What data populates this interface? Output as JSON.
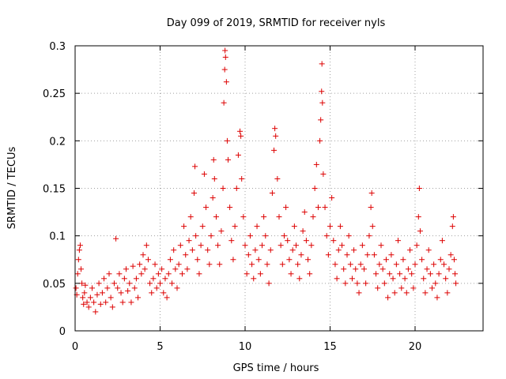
{
  "chart_data": {
    "type": "scatter",
    "title": "Day 099 of 2019, SRMTID for receiver nyls",
    "xlabel": "GPS time / hours",
    "ylabel": "SRMTID / TECUs",
    "xlim": [
      0,
      24
    ],
    "ylim": [
      0,
      0.3
    ],
    "xticks": [
      "0",
      "5",
      "10",
      "15",
      "20"
    ],
    "xtick_values": [
      0,
      5,
      10,
      15,
      20
    ],
    "yticks": [
      "0",
      "0.05",
      "0.1",
      "0.15",
      "0.2",
      "0.25",
      "0.3"
    ],
    "ytick_values": [
      0,
      0.05,
      0.1,
      0.15,
      0.2,
      0.25,
      0.3
    ],
    "grid": true,
    "marker": "plus",
    "color": "#dd0000",
    "series": [
      {
        "points": [
          [
            0.05,
            0.045
          ],
          [
            0.1,
            0.038
          ],
          [
            0.15,
            0.06
          ],
          [
            0.2,
            0.075
          ],
          [
            0.25,
            0.085
          ],
          [
            0.3,
            0.09
          ],
          [
            0.35,
            0.065
          ],
          [
            0.4,
            0.05
          ],
          [
            0.45,
            0.035
          ],
          [
            0.5,
            0.028
          ],
          [
            0.55,
            0.04
          ],
          [
            0.6,
            0.048
          ],
          [
            0.7,
            0.03
          ],
          [
            0.8,
            0.025
          ],
          [
            0.9,
            0.035
          ],
          [
            1.0,
            0.045
          ],
          [
            1.1,
            0.03
          ],
          [
            1.2,
            0.02
          ],
          [
            1.3,
            0.038
          ],
          [
            1.4,
            0.05
          ],
          [
            1.5,
            0.028
          ],
          [
            1.6,
            0.04
          ],
          [
            1.7,
            0.055
          ],
          [
            1.8,
            0.03
          ],
          [
            1.9,
            0.045
          ],
          [
            2.0,
            0.06
          ],
          [
            2.1,
            0.035
          ],
          [
            2.2,
            0.025
          ],
          [
            2.3,
            0.05
          ],
          [
            2.4,
            0.097
          ],
          [
            2.5,
            0.045
          ],
          [
            2.6,
            0.06
          ],
          [
            2.7,
            0.04
          ],
          [
            2.8,
            0.03
          ],
          [
            2.9,
            0.055
          ],
          [
            3.0,
            0.065
          ],
          [
            3.1,
            0.042
          ],
          [
            3.2,
            0.05
          ],
          [
            3.3,
            0.03
          ],
          [
            3.4,
            0.068
          ],
          [
            3.5,
            0.045
          ],
          [
            3.6,
            0.055
          ],
          [
            3.7,
            0.035
          ],
          [
            3.8,
            0.07
          ],
          [
            3.9,
            0.06
          ],
          [
            4.0,
            0.08
          ],
          [
            4.1,
            0.065
          ],
          [
            4.2,
            0.09
          ],
          [
            4.3,
            0.075
          ],
          [
            4.4,
            0.05
          ],
          [
            4.5,
            0.04
          ],
          [
            4.6,
            0.055
          ],
          [
            4.7,
            0.07
          ],
          [
            4.8,
            0.045
          ],
          [
            4.9,
            0.06
          ],
          [
            5.0,
            0.05
          ],
          [
            5.1,
            0.065
          ],
          [
            5.2,
            0.04
          ],
          [
            5.3,
            0.055
          ],
          [
            5.4,
            0.035
          ],
          [
            5.5,
            0.06
          ],
          [
            5.6,
            0.075
          ],
          [
            5.7,
            0.05
          ],
          [
            5.8,
            0.085
          ],
          [
            5.9,
            0.065
          ],
          [
            6.0,
            0.045
          ],
          [
            6.1,
            0.07
          ],
          [
            6.2,
            0.09
          ],
          [
            6.3,
            0.06
          ],
          [
            6.4,
            0.11
          ],
          [
            6.5,
            0.08
          ],
          [
            6.6,
            0.065
          ],
          [
            6.7,
            0.095
          ],
          [
            6.8,
            0.12
          ],
          [
            6.9,
            0.085
          ],
          [
            7.0,
            0.145
          ],
          [
            7.05,
            0.173
          ],
          [
            7.1,
            0.1
          ],
          [
            7.2,
            0.075
          ],
          [
            7.3,
            0.06
          ],
          [
            7.4,
            0.09
          ],
          [
            7.5,
            0.11
          ],
          [
            7.6,
            0.165
          ],
          [
            7.7,
            0.13
          ],
          [
            7.8,
            0.085
          ],
          [
            7.9,
            0.07
          ],
          [
            8.0,
            0.1
          ],
          [
            8.1,
            0.14
          ],
          [
            8.15,
            0.18
          ],
          [
            8.2,
            0.16
          ],
          [
            8.3,
            0.12
          ],
          [
            8.4,
            0.09
          ],
          [
            8.5,
            0.07
          ],
          [
            8.6,
            0.105
          ],
          [
            8.7,
            0.15
          ],
          [
            8.75,
            0.24
          ],
          [
            8.8,
            0.275
          ],
          [
            8.82,
            0.295
          ],
          [
            8.85,
            0.288
          ],
          [
            8.9,
            0.262
          ],
          [
            8.95,
            0.2
          ],
          [
            9.0,
            0.18
          ],
          [
            9.1,
            0.13
          ],
          [
            9.2,
            0.095
          ],
          [
            9.3,
            0.075
          ],
          [
            9.4,
            0.11
          ],
          [
            9.5,
            0.15
          ],
          [
            9.6,
            0.185
          ],
          [
            9.7,
            0.21
          ],
          [
            9.75,
            0.205
          ],
          [
            9.8,
            0.16
          ],
          [
            9.9,
            0.12
          ],
          [
            10.0,
            0.09
          ],
          [
            10.1,
            0.06
          ],
          [
            10.2,
            0.08
          ],
          [
            10.3,
            0.1
          ],
          [
            10.4,
            0.07
          ],
          [
            10.5,
            0.055
          ],
          [
            10.6,
            0.085
          ],
          [
            10.7,
            0.11
          ],
          [
            10.8,
            0.075
          ],
          [
            10.9,
            0.06
          ],
          [
            11.0,
            0.09
          ],
          [
            11.1,
            0.12
          ],
          [
            11.2,
            0.1
          ],
          [
            11.3,
            0.07
          ],
          [
            11.4,
            0.05
          ],
          [
            11.5,
            0.085
          ],
          [
            11.6,
            0.145
          ],
          [
            11.7,
            0.19
          ],
          [
            11.75,
            0.213
          ],
          [
            11.8,
            0.205
          ],
          [
            11.9,
            0.16
          ],
          [
            12.0,
            0.12
          ],
          [
            12.1,
            0.09
          ],
          [
            12.2,
            0.07
          ],
          [
            12.3,
            0.1
          ],
          [
            12.4,
            0.13
          ],
          [
            12.5,
            0.095
          ],
          [
            12.6,
            0.075
          ],
          [
            12.7,
            0.06
          ],
          [
            12.8,
            0.085
          ],
          [
            12.9,
            0.11
          ],
          [
            13.0,
            0.09
          ],
          [
            13.1,
            0.07
          ],
          [
            13.2,
            0.055
          ],
          [
            13.3,
            0.08
          ],
          [
            13.4,
            0.105
          ],
          [
            13.5,
            0.125
          ],
          [
            13.6,
            0.095
          ],
          [
            13.7,
            0.075
          ],
          [
            13.8,
            0.06
          ],
          [
            13.9,
            0.09
          ],
          [
            14.0,
            0.12
          ],
          [
            14.1,
            0.15
          ],
          [
            14.2,
            0.175
          ],
          [
            14.3,
            0.13
          ],
          [
            14.4,
            0.2
          ],
          [
            14.45,
            0.222
          ],
          [
            14.5,
            0.252
          ],
          [
            14.52,
            0.281
          ],
          [
            14.55,
            0.24
          ],
          [
            14.6,
            0.165
          ],
          [
            14.7,
            0.13
          ],
          [
            14.8,
            0.1
          ],
          [
            14.9,
            0.08
          ],
          [
            15.0,
            0.11
          ],
          [
            15.1,
            0.14
          ],
          [
            15.2,
            0.095
          ],
          [
            15.3,
            0.07
          ],
          [
            15.4,
            0.055
          ],
          [
            15.5,
            0.085
          ],
          [
            15.6,
            0.11
          ],
          [
            15.7,
            0.09
          ],
          [
            15.8,
            0.065
          ],
          [
            15.9,
            0.05
          ],
          [
            16.0,
            0.08
          ],
          [
            16.1,
            0.1
          ],
          [
            16.2,
            0.07
          ],
          [
            16.3,
            0.055
          ],
          [
            16.4,
            0.085
          ],
          [
            16.5,
            0.065
          ],
          [
            16.6,
            0.05
          ],
          [
            16.7,
            0.04
          ],
          [
            16.8,
            0.07
          ],
          [
            16.9,
            0.09
          ],
          [
            17.0,
            0.065
          ],
          [
            17.1,
            0.05
          ],
          [
            17.2,
            0.08
          ],
          [
            17.3,
            0.1
          ],
          [
            17.4,
            0.13
          ],
          [
            17.45,
            0.145
          ],
          [
            17.5,
            0.11
          ],
          [
            17.6,
            0.08
          ],
          [
            17.7,
            0.06
          ],
          [
            17.8,
            0.045
          ],
          [
            17.9,
            0.07
          ],
          [
            18.0,
            0.09
          ],
          [
            18.1,
            0.065
          ],
          [
            18.2,
            0.05
          ],
          [
            18.3,
            0.075
          ],
          [
            18.4,
            0.035
          ],
          [
            18.5,
            0.06
          ],
          [
            18.6,
            0.08
          ],
          [
            18.7,
            0.055
          ],
          [
            18.8,
            0.04
          ],
          [
            18.9,
            0.07
          ],
          [
            19.0,
            0.095
          ],
          [
            19.1,
            0.06
          ],
          [
            19.2,
            0.045
          ],
          [
            19.3,
            0.075
          ],
          [
            19.4,
            0.055
          ],
          [
            19.5,
            0.04
          ],
          [
            19.6,
            0.065
          ],
          [
            19.7,
            0.085
          ],
          [
            19.8,
            0.06
          ],
          [
            19.9,
            0.045
          ],
          [
            20.0,
            0.07
          ],
          [
            20.1,
            0.09
          ],
          [
            20.2,
            0.12
          ],
          [
            20.25,
            0.15
          ],
          [
            20.3,
            0.105
          ],
          [
            20.4,
            0.075
          ],
          [
            20.5,
            0.055
          ],
          [
            20.6,
            0.04
          ],
          [
            20.7,
            0.065
          ],
          [
            20.8,
            0.085
          ],
          [
            20.9,
            0.06
          ],
          [
            21.0,
            0.045
          ],
          [
            21.1,
            0.07
          ],
          [
            21.2,
            0.05
          ],
          [
            21.3,
            0.035
          ],
          [
            21.4,
            0.06
          ],
          [
            21.5,
            0.075
          ],
          [
            21.6,
            0.095
          ],
          [
            21.7,
            0.07
          ],
          [
            21.8,
            0.055
          ],
          [
            21.9,
            0.04
          ],
          [
            22.0,
            0.065
          ],
          [
            22.1,
            0.08
          ],
          [
            22.2,
            0.11
          ],
          [
            22.25,
            0.12
          ],
          [
            22.3,
            0.075
          ],
          [
            22.35,
            0.06
          ],
          [
            22.4,
            0.05
          ]
        ]
      }
    ]
  }
}
